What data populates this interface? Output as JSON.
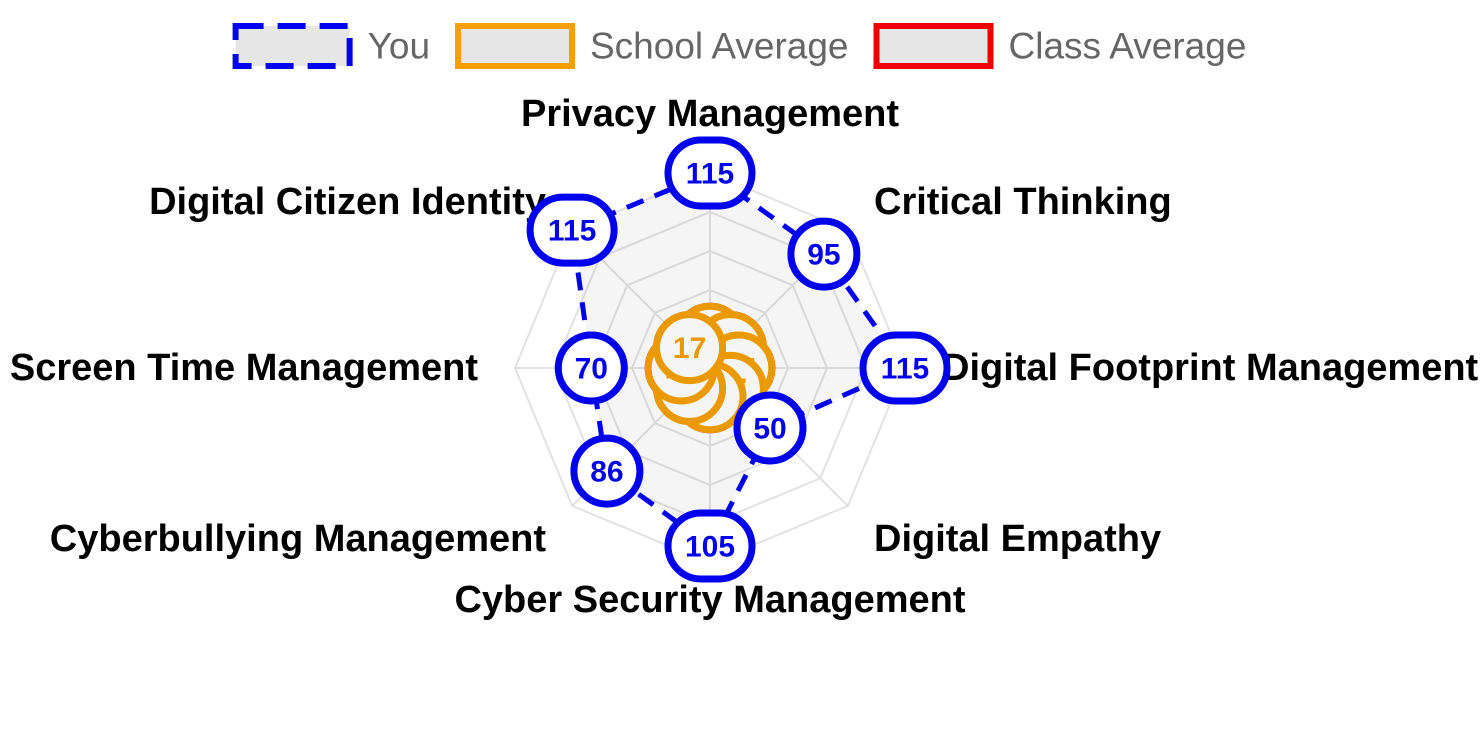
{
  "chart_data": {
    "type": "radar",
    "axes": [
      "Privacy Management",
      "Critical Thinking",
      "Digital Footprint Management",
      "Digital Empathy",
      "Cyber Security Management",
      "Cyberbullying Management",
      "Screen Time Management",
      "Digital Citizen Identity"
    ],
    "r_max": 115,
    "grid": true,
    "legend_position": "top",
    "series": [
      {
        "name": "You",
        "values": [
          115,
          95,
          115,
          50,
          105,
          86,
          70,
          115
        ],
        "color": "#0000ee",
        "line_style": "dashed"
      },
      {
        "name": "School Average",
        "values": [
          17,
          17,
          17,
          17,
          17,
          17,
          17,
          17
        ],
        "color": "#f5a000",
        "line_style": "solid"
      },
      {
        "name": "Class Average",
        "values": [
          17,
          17,
          17,
          17,
          17,
          17,
          17,
          17
        ],
        "color": "#ee0000",
        "line_style": "solid"
      }
    ]
  }
}
